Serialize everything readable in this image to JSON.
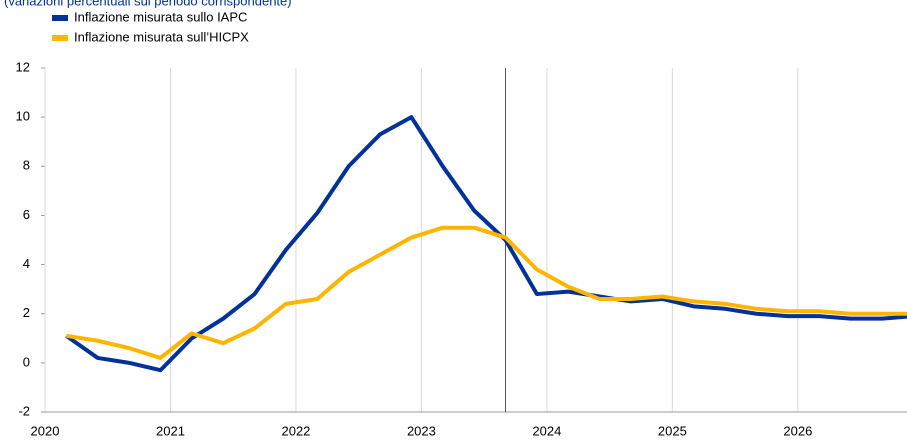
{
  "chart_data": {
    "type": "line",
    "subtitle": "(variazioni percentuali sul periodo corrispondente)",
    "x": [
      2020.17,
      2020.42,
      2020.67,
      2020.92,
      2021.17,
      2021.42,
      2021.67,
      2021.92,
      2022.17,
      2022.42,
      2022.67,
      2022.92,
      2023.17,
      2023.42,
      2023.67,
      2023.92,
      2024.17,
      2024.42,
      2024.67,
      2024.92,
      2025.17,
      2025.42,
      2025.67,
      2025.92,
      2026.17,
      2026.42,
      2026.67,
      2026.92
    ],
    "series": [
      {
        "name": "Inflazione misurata sullo IAPC",
        "color": "#003299",
        "values": [
          1.1,
          0.2,
          0.0,
          -0.3,
          1.0,
          1.8,
          2.8,
          4.6,
          6.1,
          8.0,
          9.3,
          10.0,
          8.0,
          6.2,
          5.0,
          2.8,
          2.9,
          2.7,
          2.5,
          2.6,
          2.3,
          2.2,
          2.0,
          1.9,
          1.9,
          1.8,
          1.8,
          1.9
        ]
      },
      {
        "name": "Inflazione misurata sull’HICPX",
        "color": "#FFB400",
        "values": [
          1.1,
          0.9,
          0.6,
          0.2,
          1.2,
          0.8,
          1.4,
          2.4,
          2.6,
          3.7,
          4.4,
          5.1,
          5.5,
          5.5,
          5.1,
          3.8,
          3.1,
          2.6,
          2.6,
          2.7,
          2.5,
          2.4,
          2.2,
          2.1,
          2.1,
          2.0,
          2.0,
          2.0
        ]
      }
    ],
    "xlim": [
      2020,
      2026.87
    ],
    "xticks": [
      2020,
      2021,
      2022,
      2023,
      2024,
      2025,
      2026
    ],
    "ylim": [
      -2,
      12
    ],
    "yticks": [
      -2,
      0,
      2,
      4,
      6,
      8,
      10,
      12
    ],
    "projection_start": 2023.67,
    "grid": true
  }
}
